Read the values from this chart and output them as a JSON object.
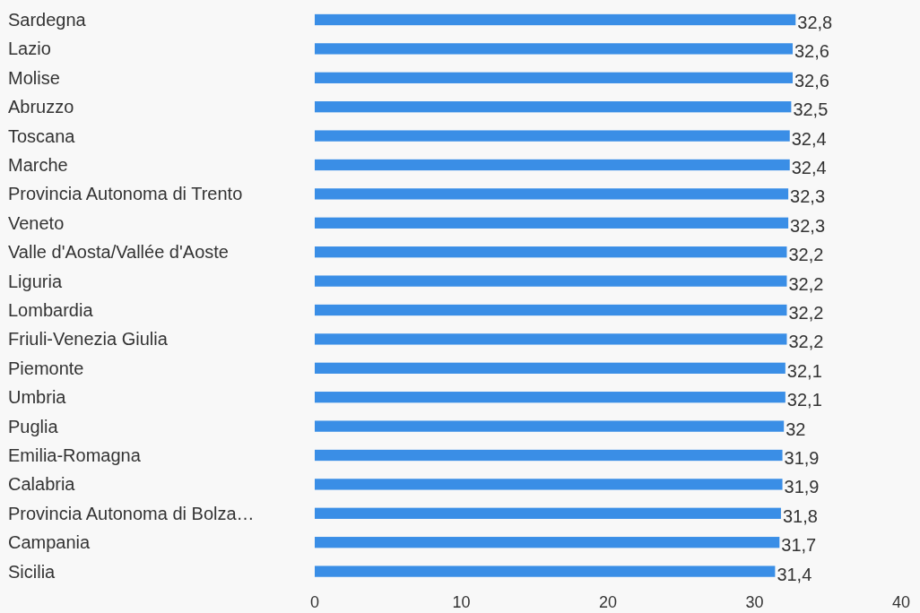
{
  "chart_data": {
    "type": "bar",
    "orientation": "horizontal",
    "categories": [
      "Sardegna",
      "Lazio",
      "Molise",
      "Abruzzo",
      "Toscana",
      "Marche",
      "Provincia Autonoma di Trento",
      "Veneto",
      "Valle d'Aosta/Vallée d'Aoste",
      "Liguria",
      "Lombardia",
      "Friuli-Venezia Giulia",
      "Piemonte",
      "Umbria",
      "Puglia",
      "Emilia-Romagna",
      "Calabria",
      "Provincia Autonoma di Bolza…",
      "Campania",
      "Sicilia"
    ],
    "values": [
      32.8,
      32.6,
      32.6,
      32.5,
      32.4,
      32.4,
      32.3,
      32.3,
      32.2,
      32.2,
      32.2,
      32.2,
      32.1,
      32.1,
      32,
      31.9,
      31.9,
      31.8,
      31.7,
      31.4
    ],
    "value_labels": [
      "32,8",
      "32,6",
      "32,6",
      "32,5",
      "32,4",
      "32,4",
      "32,3",
      "32,3",
      "32,2",
      "32,2",
      "32,2",
      "32,2",
      "32,1",
      "32,1",
      "32",
      "31,9",
      "31,9",
      "31,8",
      "31,7",
      "31,4"
    ],
    "color": "#3a8ee6",
    "xlim": [
      0,
      40
    ],
    "xticks": [
      0,
      10,
      20,
      30,
      40
    ],
    "grid": false
  }
}
